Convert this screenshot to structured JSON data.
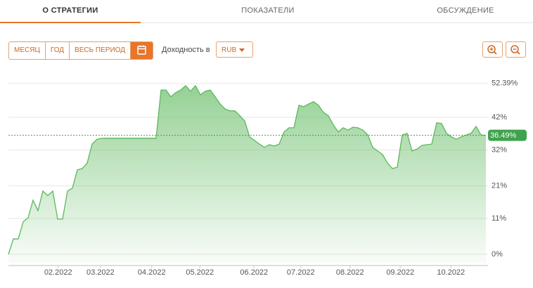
{
  "tabs": [
    "О СТРАТЕГИИ",
    "ПОКАЗАТЕЛИ",
    "ОБСУЖДЕНИЕ"
  ],
  "period_buttons": [
    "МЕСЯЦ",
    "ГОД",
    "ВЕСЬ ПЕРИОД"
  ],
  "yield_label": "Доходность в",
  "currency": "RUB",
  "chart_data": {
    "type": "area",
    "color": "#5cb85c",
    "values": [
      0,
      4.7,
      4.7,
      10,
      11.2,
      16.6,
      13.4,
      19.4,
      18,
      19.4,
      10.8,
      10.8,
      19.4,
      20.3,
      25.9,
      26.3,
      28,
      33.8,
      35.3,
      35.6,
      35.6,
      35.6,
      35.6,
      35.6,
      35.6,
      35.6,
      35.6,
      35.6,
      35.6,
      35.6,
      35.6,
      50.4,
      50.4,
      48.3,
      49.6,
      50.4,
      51.7,
      50,
      51.7,
      48.9,
      50,
      50.4,
      48.3,
      46.1,
      44.6,
      44,
      44,
      42.5,
      40.9,
      36,
      34.9,
      33.8,
      32.8,
      33.6,
      33.2,
      33.8,
      37.5,
      38.8,
      38.8,
      45.7,
      45.3,
      46.1,
      46.8,
      45.7,
      43.5,
      42.5,
      39.7,
      37.5,
      38.8,
      38.1,
      39,
      38.8,
      38.1,
      36.6,
      32.8,
      31.7,
      30.6,
      28,
      26.3,
      26.7,
      36.6,
      37.1,
      31.7,
      32.3,
      33.4,
      33.6,
      33.8,
      40.3,
      40.1,
      37.1,
      36,
      35.3,
      36,
      36.6,
      37.1,
      39.2,
      36.6,
      36.49
    ],
    "xlim": [
      0,
      97
    ],
    "xticks": [
      {
        "value": 10.1,
        "label": "02.2022"
      },
      {
        "value": 18.7,
        "label": "03.2022"
      },
      {
        "value": 29.1,
        "label": "04.2022"
      },
      {
        "value": 38.9,
        "label": "05.2022"
      },
      {
        "value": 49.9,
        "label": "06.2022"
      },
      {
        "value": 59.4,
        "label": "07.2022"
      },
      {
        "value": 69.4,
        "label": "08.2022"
      },
      {
        "value": 79.6,
        "label": "09.2022"
      },
      {
        "value": 89.9,
        "label": "10.2022"
      }
    ],
    "ylim": [
      -2.8,
      55.8
    ],
    "yticks": [
      {
        "value": 0,
        "label": "0%"
      },
      {
        "value": 11,
        "label": "11%"
      },
      {
        "value": 21,
        "label": "21%"
      },
      {
        "value": 32,
        "label": "32%"
      },
      {
        "value": 42,
        "label": "42%"
      },
      {
        "value": 52.39,
        "label": "52.39%"
      }
    ],
    "reference_line": {
      "value": 36.49,
      "label": "36.49%"
    },
    "grid": true
  }
}
